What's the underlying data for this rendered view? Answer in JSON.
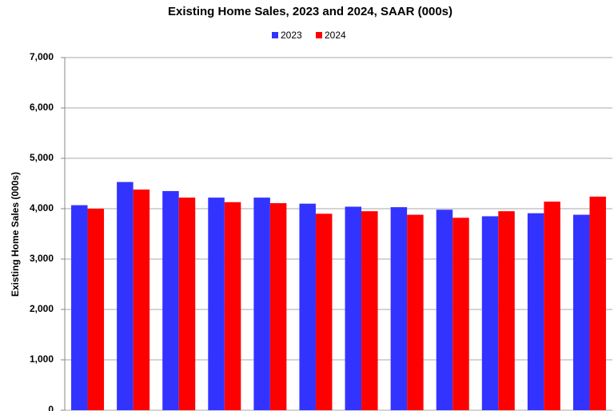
{
  "chart_data": {
    "type": "bar",
    "title": "Existing Home Sales,  2023 and 2024, SAAR (000s)",
    "y_label": "Existing Home Sales (000s)",
    "categories": [
      null,
      null,
      null,
      null,
      null,
      null,
      null,
      null,
      null,
      null,
      null,
      null
    ],
    "series": [
      {
        "name": "2023",
        "color": "#3333ff",
        "values": [
          4070,
          4530,
          4350,
          4220,
          4220,
          4100,
          4040,
          4030,
          3980,
          3850,
          3910,
          3880
        ]
      },
      {
        "name": "2024",
        "color": "#ff0000",
        "values": [
          4000,
          4380,
          4220,
          4130,
          4110,
          3900,
          3950,
          3880,
          3820,
          3950,
          4140,
          4240
        ]
      }
    ],
    "ylim": [
      0,
      7000
    ],
    "yticks": [
      {
        "value": 0,
        "label": "0"
      },
      {
        "value": 1000,
        "label": "1,000"
      },
      {
        "value": 2000,
        "label": "2,000"
      },
      {
        "value": 3000,
        "label": "3,000"
      },
      {
        "value": 4000,
        "label": "4,000"
      },
      {
        "value": 5000,
        "label": "5,000"
      },
      {
        "value": 6000,
        "label": "6,000"
      },
      {
        "value": 7000,
        "label": "7,000"
      }
    ],
    "grid": true
  }
}
